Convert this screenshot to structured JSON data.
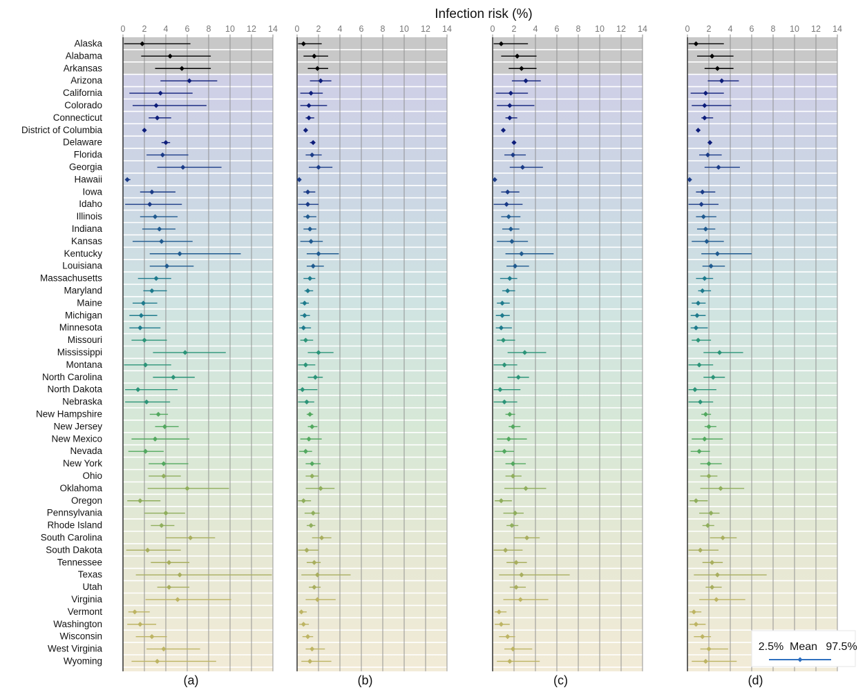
{
  "chart_data": {
    "type": "forest",
    "title": "Infection risk (%)",
    "x_ticks": [
      0,
      2,
      4,
      6,
      8,
      10,
      12,
      14
    ],
    "xlim": [
      0,
      14
    ],
    "grid": true,
    "states": [
      "Alaska",
      "Alabama",
      "Arkansas",
      "Arizona",
      "California",
      "Colorado",
      "Connecticut",
      "District of Columbia",
      "Delaware",
      "Florida",
      "Georgia",
      "Hawaii",
      "Iowa",
      "Idaho",
      "Illinois",
      "Indiana",
      "Kansas",
      "Kentucky",
      "Louisiana",
      "Massachusetts",
      "Maryland",
      "Maine",
      "Michigan",
      "Minnesota",
      "Missouri",
      "Mississippi",
      "Montana",
      "North Carolina",
      "North Dakota",
      "Nebraska",
      "New Hampshire",
      "New Jersey",
      "New Mexico",
      "Nevada",
      "New York",
      "Ohio",
      "Oklahoma",
      "Oregon",
      "Pennsylvania",
      "Rhode Island",
      "South Carolina",
      "South Dakota",
      "Tennessee",
      "Texas",
      "Utah",
      "Virginia",
      "Vermont",
      "Washington",
      "Wisconsin",
      "West Virginia",
      "Wyoming"
    ],
    "panels": [
      {
        "label": "(a)",
        "mean": [
          1.8,
          4.4,
          5.5,
          6.2,
          3.5,
          3.1,
          3.2,
          2.0,
          4.0,
          3.7,
          5.6,
          0.4,
          2.7,
          2.5,
          3.0,
          3.4,
          3.6,
          5.3,
          4.1,
          3.1,
          2.7,
          1.9,
          1.7,
          1.6,
          2.0,
          5.8,
          2.1,
          4.7,
          1.4,
          2.2,
          3.3,
          3.9,
          3.0,
          2.1,
          3.8,
          3.8,
          6.0,
          1.6,
          4.0,
          3.6,
          6.3,
          2.3,
          4.3,
          5.3,
          4.3,
          5.1,
          1.1,
          1.6,
          2.7,
          3.8,
          3.2
        ],
        "low": [
          0.1,
          1.7,
          3.0,
          3.5,
          0.6,
          0.9,
          2.4,
          2.0,
          3.6,
          2.2,
          3.2,
          0.2,
          1.6,
          0.2,
          1.6,
          1.8,
          0.9,
          2.5,
          2.5,
          1.4,
          1.9,
          0.9,
          0.6,
          0.6,
          0.8,
          2.8,
          0.1,
          2.8,
          0.2,
          0.2,
          2.5,
          3.0,
          0.8,
          0.5,
          2.4,
          2.4,
          2.3,
          0.4,
          2.0,
          2.6,
          4.0,
          0.3,
          2.6,
          1.2,
          3.2,
          2.1,
          0.5,
          0.4,
          1.2,
          2.2,
          0.8
        ],
        "high": [
          6.3,
          8.2,
          8.2,
          8.8,
          6.5,
          7.8,
          4.5,
          2.1,
          4.4,
          6.1,
          9.2,
          0.7,
          4.9,
          5.5,
          5.1,
          4.9,
          6.5,
          11.0,
          6.6,
          4.5,
          4.1,
          3.2,
          3.2,
          3.5,
          4.1,
          9.6,
          4.5,
          6.7,
          5.1,
          4.4,
          4.2,
          5.2,
          6.2,
          3.8,
          6.1,
          5.4,
          9.9,
          3.5,
          5.8,
          4.8,
          8.6,
          5.4,
          6.2,
          13.9,
          6.2,
          10.1,
          2.5,
          3.1,
          4.1,
          7.2,
          8.7
        ]
      },
      {
        "label": "(b)",
        "mean": [
          0.6,
          1.6,
          1.9,
          2.2,
          1.3,
          1.1,
          1.1,
          0.8,
          1.5,
          1.4,
          2.0,
          0.2,
          1.0,
          1.0,
          1.0,
          1.2,
          1.3,
          2.0,
          1.5,
          1.2,
          1.0,
          0.7,
          0.7,
          0.6,
          0.8,
          2.0,
          0.8,
          1.7,
          0.5,
          0.9,
          1.2,
          1.4,
          1.1,
          0.8,
          1.4,
          1.4,
          2.2,
          0.6,
          1.5,
          1.3,
          2.3,
          0.9,
          1.6,
          1.9,
          1.6,
          1.9,
          0.4,
          0.6,
          1.0,
          1.4,
          1.2
        ],
        "low": [
          0.1,
          0.6,
          1.0,
          1.2,
          0.3,
          0.3,
          0.8,
          0.7,
          1.2,
          0.8,
          1.1,
          0.1,
          0.6,
          0.1,
          0.6,
          0.6,
          0.3,
          0.9,
          0.9,
          0.6,
          0.7,
          0.3,
          0.3,
          0.2,
          0.3,
          1.0,
          0.1,
          1.0,
          0.1,
          0.1,
          0.9,
          1.0,
          0.3,
          0.2,
          0.8,
          0.8,
          0.8,
          0.1,
          0.7,
          0.9,
          1.4,
          0.1,
          0.9,
          0.4,
          1.1,
          0.8,
          0.2,
          0.2,
          0.5,
          0.8,
          0.4
        ],
        "high": [
          2.3,
          2.9,
          2.9,
          3.2,
          2.4,
          2.8,
          1.6,
          0.9,
          1.7,
          2.3,
          3.3,
          0.3,
          1.7,
          2.0,
          1.8,
          1.8,
          2.4,
          3.9,
          2.5,
          1.7,
          1.5,
          1.1,
          1.2,
          1.3,
          1.5,
          3.4,
          1.7,
          2.4,
          1.9,
          1.6,
          1.5,
          1.9,
          2.3,
          1.4,
          2.2,
          2.0,
          3.5,
          1.3,
          2.1,
          1.7,
          3.2,
          2.0,
          2.2,
          5.0,
          2.2,
          3.6,
          0.9,
          1.1,
          1.5,
          2.6,
          3.2
        ]
      },
      {
        "label": "(c)",
        "mean": [
          0.8,
          2.3,
          2.7,
          3.1,
          1.7,
          1.6,
          1.6,
          1.0,
          2.0,
          1.9,
          2.8,
          0.2,
          1.4,
          1.3,
          1.5,
          1.7,
          1.8,
          2.7,
          2.1,
          1.6,
          1.4,
          0.9,
          0.9,
          0.8,
          1.0,
          3.0,
          1.1,
          2.4,
          0.7,
          1.1,
          1.6,
          1.9,
          1.5,
          1.1,
          1.9,
          1.9,
          3.1,
          0.8,
          2.1,
          1.8,
          3.2,
          1.2,
          2.2,
          2.7,
          2.2,
          2.6,
          0.6,
          0.8,
          1.4,
          1.9,
          1.6
        ],
        "low": [
          0.1,
          0.8,
          1.5,
          1.8,
          0.3,
          0.4,
          1.2,
          0.9,
          1.8,
          1.1,
          1.6,
          0.1,
          0.8,
          0.1,
          0.8,
          0.9,
          0.4,
          1.2,
          1.3,
          0.7,
          0.9,
          0.4,
          0.3,
          0.3,
          0.4,
          1.4,
          0.1,
          1.4,
          0.1,
          0.1,
          1.2,
          1.5,
          0.4,
          0.2,
          1.2,
          1.2,
          1.1,
          0.2,
          1.0,
          1.3,
          2.0,
          0.1,
          1.3,
          0.6,
          1.6,
          1.0,
          0.2,
          0.2,
          0.6,
          1.1,
          0.4
        ],
        "high": [
          3.3,
          4.1,
          4.1,
          4.5,
          3.3,
          3.9,
          2.3,
          1.1,
          2.2,
          3.1,
          4.7,
          0.4,
          2.5,
          2.8,
          2.6,
          2.5,
          3.3,
          5.7,
          3.4,
          2.3,
          2.1,
          1.6,
          1.6,
          1.8,
          2.1,
          5.0,
          2.3,
          3.4,
          2.6,
          2.3,
          2.1,
          2.6,
          3.2,
          2.0,
          3.1,
          2.7,
          5.0,
          1.8,
          2.9,
          2.4,
          4.4,
          2.8,
          3.2,
          7.2,
          3.1,
          5.2,
          1.3,
          1.6,
          2.1,
          3.7,
          4.4
        ]
      },
      {
        "label": "(d)",
        "mean": [
          0.8,
          2.3,
          2.8,
          3.2,
          1.7,
          1.6,
          1.6,
          1.0,
          2.1,
          1.9,
          2.9,
          0.2,
          1.4,
          1.3,
          1.5,
          1.7,
          1.8,
          2.8,
          2.2,
          1.6,
          1.4,
          1.0,
          0.9,
          0.8,
          1.0,
          3.0,
          1.1,
          2.4,
          0.7,
          1.2,
          1.7,
          2.0,
          1.6,
          1.1,
          2.0,
          2.0,
          3.1,
          0.8,
          2.2,
          1.9,
          3.3,
          1.2,
          2.3,
          2.8,
          2.3,
          2.7,
          0.6,
          0.8,
          1.4,
          2.0,
          1.7
        ],
        "low": [
          0.1,
          0.9,
          1.6,
          1.9,
          0.3,
          0.4,
          1.3,
          0.9,
          1.9,
          1.1,
          1.6,
          0.1,
          0.8,
          0.1,
          0.8,
          0.9,
          0.4,
          1.3,
          1.4,
          0.8,
          1.0,
          0.4,
          0.3,
          0.3,
          0.4,
          1.5,
          0.1,
          1.5,
          0.1,
          0.1,
          1.3,
          1.6,
          0.4,
          0.3,
          1.2,
          1.2,
          1.2,
          0.2,
          1.1,
          1.4,
          2.1,
          0.1,
          1.4,
          0.6,
          1.7,
          1.1,
          0.2,
          0.2,
          0.6,
          1.2,
          0.4
        ],
        "high": [
          3.4,
          4.3,
          4.3,
          4.8,
          3.4,
          4.1,
          2.4,
          1.2,
          2.3,
          3.2,
          4.9,
          0.4,
          2.6,
          2.9,
          2.7,
          2.6,
          3.4,
          6.0,
          3.5,
          2.4,
          2.2,
          1.7,
          1.7,
          1.9,
          2.2,
          5.2,
          2.4,
          3.5,
          2.7,
          2.4,
          2.2,
          2.7,
          3.3,
          2.1,
          3.2,
          2.8,
          5.3,
          1.9,
          3.0,
          2.5,
          4.6,
          2.9,
          3.3,
          7.4,
          3.2,
          5.4,
          1.3,
          1.7,
          2.2,
          3.8,
          4.6
        ]
      }
    ],
    "legend": {
      "labels": [
        "2.5%",
        "Mean",
        "97.5%"
      ],
      "location": "bottom-right",
      "line_color": "#2e6fbf"
    },
    "band_colors": {
      "gray": "#c8c8c8",
      "gradient": [
        "#cfcfe6",
        "#ccd7e3",
        "#d0e4e3",
        "#d6e8d6",
        "#e5e7d3",
        "#f1ead6"
      ]
    },
    "marker_palette": [
      "#000000",
      "#0d1d7a",
      "#1a3b87",
      "#1f5a8f",
      "#1d7a8c",
      "#2b9478",
      "#52a85f",
      "#8fae5c",
      "#a8ae5e",
      "#bdb463"
    ]
  }
}
